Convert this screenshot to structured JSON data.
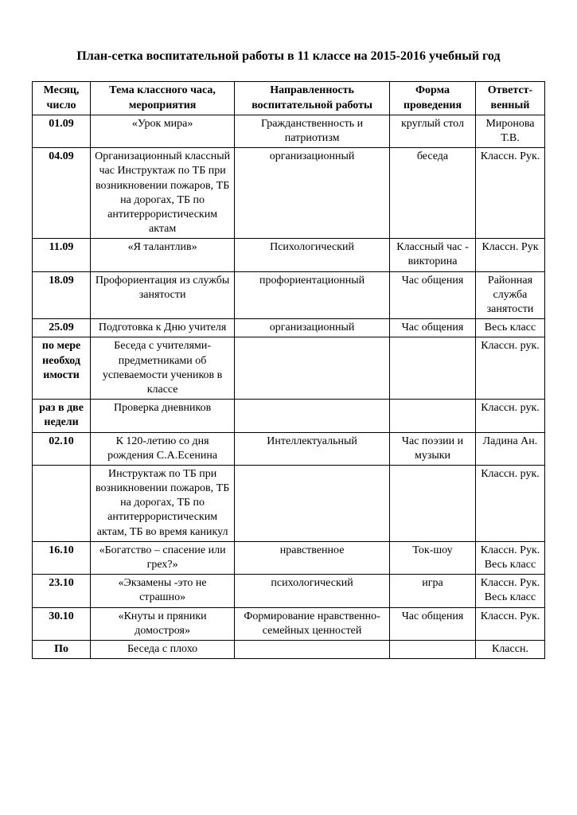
{
  "title": "План-сетка  воспитательной работы в 11 классе на 2015-2016 учебный год",
  "headers": {
    "col1": "Месяц, число",
    "col2": "Тема классного часа, мероприятия",
    "col3": "Направленность воспитательной работы",
    "col4": "Форма проведения",
    "col5": "Ответст-венный"
  },
  "rows": [
    {
      "c1": "01.09",
      "c2": "«Урок мира»",
      "c3": "Гражданственность и патриотизм",
      "c4": "круглый стол",
      "c5": "Миронова Т.В."
    },
    {
      "c1": "04.09",
      "c2": "Организационный классный час Инструктаж по ТБ  при возникновении пожаров, ТБ  на дорогах, ТБ по антитеррористическим актам",
      "c3": "организационный",
      "c4": "беседа",
      "c5": "Классн. Рук."
    },
    {
      "c1": "11.09",
      "c2": "«Я талантлив»",
      "c3": "Психологический",
      "c4": "Классный час - викторина",
      "c5": "Классн. Рук"
    },
    {
      "c1": "18.09",
      "c2": "Профориентация из службы занятости",
      "c3": "профориентационный",
      "c4": "Час общения",
      "c5": "Районная служба занятости"
    },
    {
      "c1": "25.09",
      "c2": "Подготовка к Дню учителя",
      "c3": "организационный",
      "c4": "Час общения",
      "c5": "Весь класс"
    },
    {
      "c1": "по мере необход имости",
      "c2": "Беседа с учителями-предметниками об успеваемости учеников в классе",
      "c3": "",
      "c4": "",
      "c5": "Классн. рук."
    },
    {
      "c1": "раз в две недели",
      "c2": "Проверка дневников",
      "c3": "",
      "c4": "",
      "c5": "Классн. рук."
    },
    {
      "c1": "02.10",
      "c2": "К 120-летию со дня рождения С.А.Есенина",
      "c3": "Интеллектуальный",
      "c4": "Час поэзии и музыки",
      "c5": "Ладина Ан."
    },
    {
      "c1": "",
      "c2": "Инструктаж по ТБ  при возникновении пожаров, ТБ  на дорогах, ТБ по антитеррористическим актам, ТБ во время каникул",
      "c3": "",
      "c4": "",
      "c5": "Классн. рук."
    },
    {
      "c1": "16.10",
      "c2": "«Богатство – спасение или грех?»",
      "c3": "нравственное",
      "c4": "Ток-шоу",
      "c5": "Классн. Рук. Весь класс"
    },
    {
      "c1": "23.10",
      "c2": "«Экзамены -это не страшно»",
      "c3": "психологический",
      "c4": "игра",
      "c5": "Классн. Рук. Весь класс"
    },
    {
      "c1": "30.10",
      "c2": "«Кнуты и пряники домостроя»",
      "c3": "Формирование нравственно-семейных ценностей",
      "c4": "Час общения",
      "c5": "Классн. Рук."
    },
    {
      "c1": "По",
      "c2": "Беседа с плохо",
      "c3": "",
      "c4": "",
      "c5": "Классн."
    }
  ]
}
